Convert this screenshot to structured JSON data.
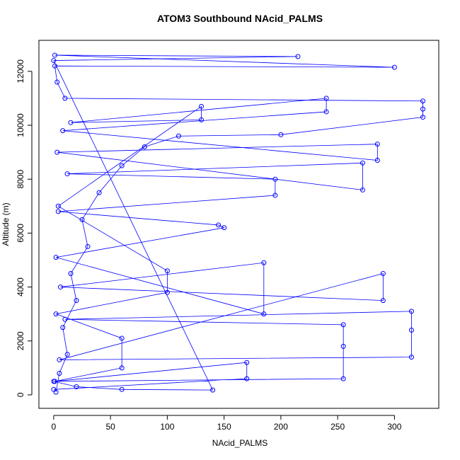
{
  "chart_data": {
    "type": "scatter",
    "title": "ATOM3 Southbound NAcid_PALMS",
    "x_label": "NAcid_PALMS",
    "y_label": "Altitude (m)",
    "color": "#0000ff",
    "x": [
      2,
      5,
      12,
      8,
      20,
      15,
      30,
      25,
      40,
      60,
      80,
      110,
      200,
      325,
      325,
      325,
      10,
      3,
      1,
      300,
      1,
      215,
      0,
      140,
      60,
      20,
      0,
      255,
      255,
      255,
      10,
      315,
      315,
      315,
      5,
      290,
      290,
      6,
      185,
      185,
      2,
      150,
      145,
      4,
      195,
      195,
      12,
      272,
      272,
      3,
      285,
      285,
      8,
      240,
      240,
      15,
      130,
      130,
      4,
      100,
      100,
      2,
      60,
      60,
      1,
      170,
      170,
      0
    ],
    "values": [
      100,
      800,
      1500,
      2500,
      3500,
      4500,
      5500,
      6500,
      7500,
      8500,
      9200,
      9600,
      9650,
      10300,
      10600,
      10900,
      11000,
      11600,
      12200,
      12150,
      12600,
      12550,
      12400,
      180,
      200,
      300,
      500,
      600,
      1800,
      2600,
      2800,
      3100,
      2400,
      1400,
      1300,
      4500,
      3500,
      4000,
      4900,
      3000,
      5100,
      6200,
      6300,
      6800,
      7400,
      8000,
      8200,
      8600,
      7600,
      9000,
      9300,
      8700,
      9800,
      10500,
      11000,
      10100,
      10200,
      10700,
      7000,
      4600,
      3800,
      3000,
      2100,
      1000,
      500,
      1200,
      600,
      200
    ],
    "xlim": [
      -13,
      339
    ],
    "ylim": [
      -500,
      13150
    ],
    "xticks": [
      0,
      50,
      100,
      150,
      200,
      250,
      300
    ],
    "yticks": [
      0,
      2000,
      4000,
      6000,
      8000,
      10000,
      12000
    ]
  }
}
